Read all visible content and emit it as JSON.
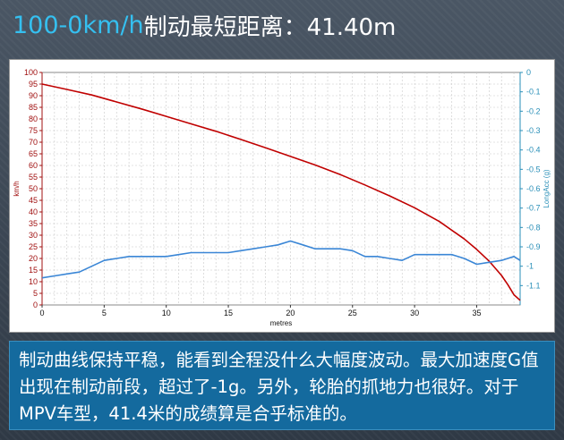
{
  "header": {
    "title_highlight": "100-0km/h",
    "title_rest": "制动最短距离：41.40m"
  },
  "caption": "制动曲线保持平稳，能看到全程没什么大幅度波动。最大加速度G值出现在制动前段，超过了-1g。另外，轮胎的抓地力也很好。对于MPV车型，41.4米的成绩算是合乎标准的。",
  "chart_data": {
    "type": "line",
    "xlabel": "metres",
    "ylabel_left": "km/h",
    "ylabel_right": "LongAcc (g)",
    "xlim": [
      0,
      38.5
    ],
    "ylim_left": [
      0,
      100
    ],
    "ylim_right": [
      -1.2,
      0
    ],
    "x_ticks": [
      0,
      5,
      10,
      15,
      20,
      25,
      30,
      35
    ],
    "y_left_ticks": [
      0,
      5,
      10,
      15,
      20,
      25,
      30,
      35,
      40,
      45,
      50,
      55,
      60,
      65,
      70,
      75,
      80,
      85,
      90,
      95,
      100
    ],
    "y_right_ticks": [
      0,
      -0.1,
      -0.2,
      -0.3,
      -0.4,
      -0.5,
      -0.6,
      -0.7,
      -0.8,
      -0.9,
      -1,
      -1.1
    ],
    "grid": true,
    "colors": {
      "speed": "#c00000",
      "accel": "#3a86d6",
      "left_axis": "#a01010",
      "right_axis": "#2a8fb8"
    },
    "series": [
      {
        "axis": "left",
        "x": [
          0,
          2,
          4,
          6,
          8,
          10,
          12,
          14,
          16,
          18,
          20,
          22,
          24,
          26,
          28,
          30,
          32,
          34,
          35,
          36,
          37,
          37.5,
          38,
          38.5
        ],
        "y": [
          95,
          92.7,
          90.3,
          87.3,
          84.3,
          81.1,
          77.9,
          74.7,
          71.2,
          67.6,
          63.9,
          60.2,
          56.1,
          51.6,
          46.9,
          41.8,
          35.9,
          28.4,
          23.9,
          18.9,
          12.7,
          8.8,
          4.4,
          2
        ]
      },
      {
        "axis": "right",
        "x": [
          0,
          1,
          2,
          3,
          4,
          5,
          6,
          7,
          8,
          9,
          10,
          11,
          12,
          13,
          14,
          15,
          16,
          17,
          18,
          19,
          20,
          21,
          22,
          23,
          24,
          25,
          26,
          27,
          28,
          29,
          30,
          31,
          32,
          33,
          34,
          35,
          36,
          37,
          37.5,
          38,
          38.5
        ],
        "y": [
          -1.06,
          -1.05,
          -1.04,
          -1.03,
          -1.0,
          -0.97,
          -0.96,
          -0.95,
          -0.95,
          -0.95,
          -0.95,
          -0.94,
          -0.93,
          -0.93,
          -0.93,
          -0.93,
          -0.92,
          -0.91,
          -0.9,
          -0.89,
          -0.87,
          -0.89,
          -0.91,
          -0.91,
          -0.91,
          -0.92,
          -0.95,
          -0.95,
          -0.96,
          -0.97,
          -0.94,
          -0.94,
          -0.94,
          -0.94,
          -0.96,
          -0.99,
          -0.98,
          -0.97,
          -0.96,
          -0.95,
          -0.97
        ]
      }
    ]
  }
}
